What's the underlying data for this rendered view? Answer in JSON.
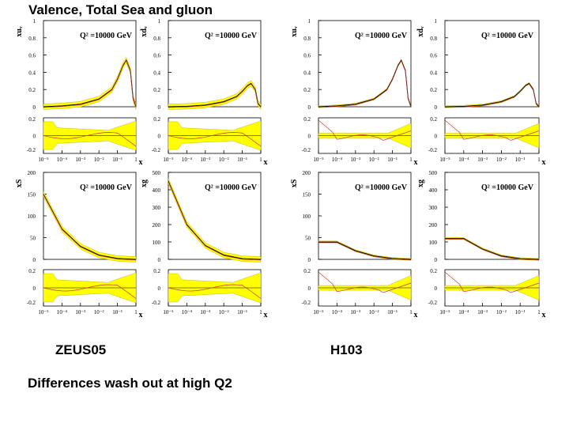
{
  "title": "Valence, Total Sea and gluon",
  "label_left": "ZEUS05",
  "label_right": "H103",
  "caption": "Differences wash out at high Q2",
  "q2_label": "Q² =10000 GeV",
  "colors": {
    "band": "#ffff00",
    "band_edge": "#b5a800",
    "central": "#000000",
    "alt": "#cc3333"
  },
  "chart_data": [
    {
      "type": "line",
      "panel": "xuv-zeus",
      "ylabel": "xuᵥ",
      "xlabel": "x",
      "ylim": [
        0,
        1.0
      ],
      "yticks": [
        "0",
        "0.2",
        "0.4",
        "0.6",
        "0.8",
        "1"
      ],
      "xticks": [
        "10⁻⁵",
        "10⁻⁴",
        "10⁻³",
        "10⁻²",
        "10⁻¹",
        "1"
      ],
      "ratio_yticks": [
        "0.2",
        "0",
        "-0.2"
      ],
      "x": [
        1e-05,
        0.0001,
        0.001,
        0.01,
        0.05,
        0.1,
        0.2,
        0.3,
        0.5,
        0.7,
        1
      ],
      "series": [
        {
          "name": "central",
          "values": [
            0,
            0.01,
            0.03,
            0.09,
            0.2,
            0.32,
            0.48,
            0.54,
            0.42,
            0.1,
            0
          ]
        }
      ]
    },
    {
      "type": "line",
      "panel": "xdv-zeus",
      "ylabel": "xdᵥ",
      "xlabel": "x",
      "ylim": [
        0,
        1.0
      ],
      "yticks": [
        "0",
        "0.2",
        "0.4",
        "0.6",
        "0.8",
        "1"
      ],
      "xticks": [
        "10⁻⁵",
        "10⁻⁴",
        "10⁻³",
        "10⁻²",
        "10⁻¹",
        "1"
      ],
      "ratio_yticks": [
        "0.2",
        "0",
        "-0.2"
      ],
      "x": [
        1e-05,
        0.0001,
        0.001,
        0.01,
        0.05,
        0.1,
        0.2,
        0.3,
        0.5,
        0.7,
        1
      ],
      "series": [
        {
          "name": "central",
          "values": [
            0,
            0.005,
            0.02,
            0.06,
            0.12,
            0.18,
            0.25,
            0.27,
            0.2,
            0.04,
            0
          ]
        }
      ]
    },
    {
      "type": "line",
      "panel": "xuv-h1",
      "ylabel": "xuᵥ",
      "xlabel": "x",
      "ylim": [
        0,
        1.0
      ],
      "yticks": [
        "0",
        "0.2",
        "0.4",
        "0.6",
        "0.8",
        "1"
      ],
      "xticks": [
        "10⁻⁵",
        "10⁻⁴",
        "10⁻³",
        "10⁻²",
        "10⁻¹",
        "1"
      ],
      "ratio_yticks": [
        "0.2",
        "0",
        "-0.2"
      ],
      "x": [
        1e-05,
        0.0001,
        0.001,
        0.01,
        0.05,
        0.1,
        0.2,
        0.3,
        0.5,
        0.7,
        1
      ],
      "series": [
        {
          "name": "central",
          "values": [
            0,
            0.01,
            0.03,
            0.09,
            0.2,
            0.32,
            0.48,
            0.54,
            0.42,
            0.1,
            0
          ]
        }
      ]
    },
    {
      "type": "line",
      "panel": "xdv-h1",
      "ylabel": "xdᵥ",
      "xlabel": "x",
      "ylim": [
        0,
        1.0
      ],
      "yticks": [
        "0",
        "0.2",
        "0.4",
        "0.6",
        "0.8",
        "1"
      ],
      "xticks": [
        "10⁻⁵",
        "10⁻⁴",
        "10⁻³",
        "10⁻²",
        "10⁻¹",
        "1"
      ],
      "ratio_yticks": [
        "0.2",
        "0",
        "-0.2"
      ],
      "x": [
        1e-05,
        0.0001,
        0.001,
        0.01,
        0.05,
        0.1,
        0.2,
        0.3,
        0.5,
        0.7,
        1
      ],
      "series": [
        {
          "name": "central",
          "values": [
            0,
            0.005,
            0.02,
            0.06,
            0.12,
            0.18,
            0.25,
            0.27,
            0.2,
            0.04,
            0
          ]
        }
      ]
    },
    {
      "type": "line",
      "panel": "xs-zeus",
      "ylabel": "xS",
      "xlabel": "x",
      "ylim": [
        0,
        200
      ],
      "yticks": [
        "0",
        "50",
        "100",
        "150",
        "200"
      ],
      "xticks": [
        "10⁻⁵",
        "10⁻⁴",
        "10⁻³",
        "10⁻²",
        "10⁻¹",
        "1"
      ],
      "ratio_yticks": [
        "0.2",
        "0",
        "-0.2"
      ],
      "x": [
        1e-05,
        0.0001,
        0.001,
        0.01,
        0.1,
        1
      ],
      "series": [
        {
          "name": "central",
          "values": [
            150,
            70,
            30,
            10,
            2,
            0
          ]
        }
      ]
    },
    {
      "type": "line",
      "panel": "xg-zeus",
      "ylabel": "xg",
      "xlabel": "x",
      "ylim": [
        0,
        500
      ],
      "yticks": [
        "0",
        "100",
        "200",
        "300",
        "400",
        "500"
      ],
      "xticks": [
        "10⁻⁵",
        "10⁻⁴",
        "10⁻³",
        "10⁻²",
        "10⁻¹",
        "1"
      ],
      "ratio_yticks": [
        "0.2",
        "0",
        "-0.2"
      ],
      "x": [
        1e-05,
        0.0001,
        0.001,
        0.01,
        0.1,
        1
      ],
      "series": [
        {
          "name": "central",
          "values": [
            450,
            200,
            80,
            25,
            4,
            0
          ]
        }
      ]
    },
    {
      "type": "line",
      "panel": "xs-h1",
      "ylabel": "xS",
      "xlabel": "x",
      "ylim": [
        0,
        200
      ],
      "yticks": [
        "0",
        "50",
        "100",
        "150",
        "200"
      ],
      "xticks": [
        "10⁻⁵",
        "10⁻⁴",
        "10⁻³",
        "10⁻²",
        "10⁻¹",
        "1"
      ],
      "ratio_yticks": [
        "0.2",
        "0",
        "-0.2"
      ],
      "x": [
        1e-05,
        0.0001,
        0.001,
        0.01,
        0.1,
        1
      ],
      "series": [
        {
          "name": "central",
          "values": [
            40,
            40,
            20,
            8,
            2,
            0
          ]
        }
      ]
    },
    {
      "type": "line",
      "panel": "xg-h1",
      "ylabel": "xg",
      "xlabel": "x",
      "ylim": [
        0,
        500
      ],
      "yticks": [
        "0",
        "100",
        "200",
        "300",
        "400",
        "500"
      ],
      "xticks": [
        "10⁻⁵",
        "10⁻⁴",
        "10⁻³",
        "10⁻²",
        "10⁻¹",
        "1"
      ],
      "ratio_yticks": [
        "0.2",
        "0",
        "-0.2"
      ],
      "x": [
        1e-05,
        0.0001,
        0.001,
        0.01,
        0.1,
        1
      ],
      "series": [
        {
          "name": "central",
          "values": [
            120,
            120,
            60,
            20,
            4,
            0
          ]
        }
      ]
    }
  ]
}
